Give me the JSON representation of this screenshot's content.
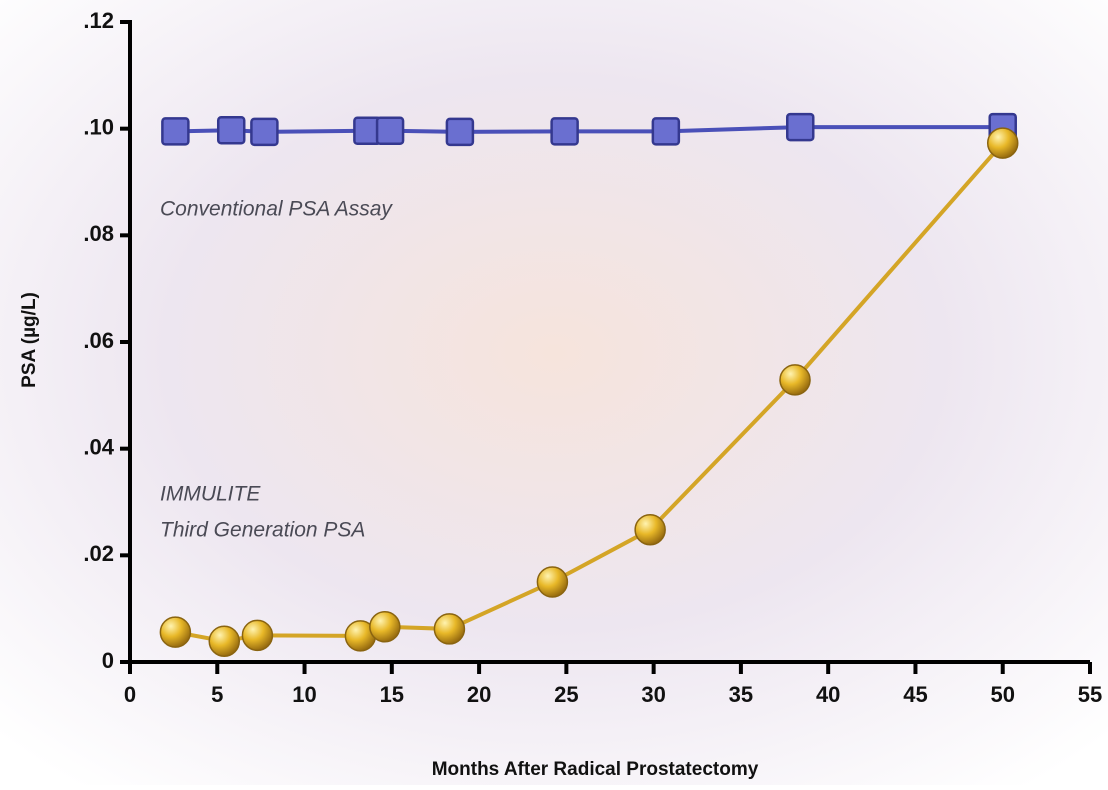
{
  "chart_data": {
    "type": "line",
    "x_label": "Months After Radical Prostatectomy",
    "y_label": "PSA (µg/L)",
    "annotations": [
      "Conventional PSA Assay",
      "IMMULITE",
      "Third Generation PSA"
    ],
    "xlim": [
      0,
      55
    ],
    "xticks": [
      0,
      5,
      10,
      15,
      20,
      25,
      30,
      35,
      40,
      45,
      50,
      55
    ],
    "ylim": [
      0,
      0.12
    ],
    "yticks": [
      0,
      {
        "value": 0.02,
        "label": ".02"
      },
      {
        "value": 0.04,
        "label": ".04"
      },
      {
        "value": 0.06,
        "label": ".06"
      },
      {
        "value": 0.08,
        "label": ".08"
      },
      {
        "value": 0.1,
        "label": ".10"
      },
      {
        "value": 0.12,
        "label": ".12"
      }
    ],
    "series": [
      {
        "color": "#4a50b8",
        "marker": "square",
        "x": [
          2.6,
          5.8,
          7.7,
          13.6,
          14.9,
          18.9,
          24.9,
          30.7,
          38.4,
          50.0
        ],
        "values": [
          0.0995,
          0.0997,
          0.0994,
          0.0996,
          0.0996,
          0.0994,
          0.0995,
          0.0995,
          0.1003,
          0.1003
        ]
      },
      {
        "color": "#d4a526",
        "marker": "circle",
        "x": [
          2.6,
          5.4,
          7.3,
          13.2,
          14.6,
          18.3,
          24.2,
          29.8,
          38.1,
          50.0
        ],
        "values": [
          0.0056,
          0.0039,
          0.005,
          0.0049,
          0.0066,
          0.0062,
          0.015,
          0.0248,
          0.0529,
          0.0973
        ]
      }
    ]
  }
}
